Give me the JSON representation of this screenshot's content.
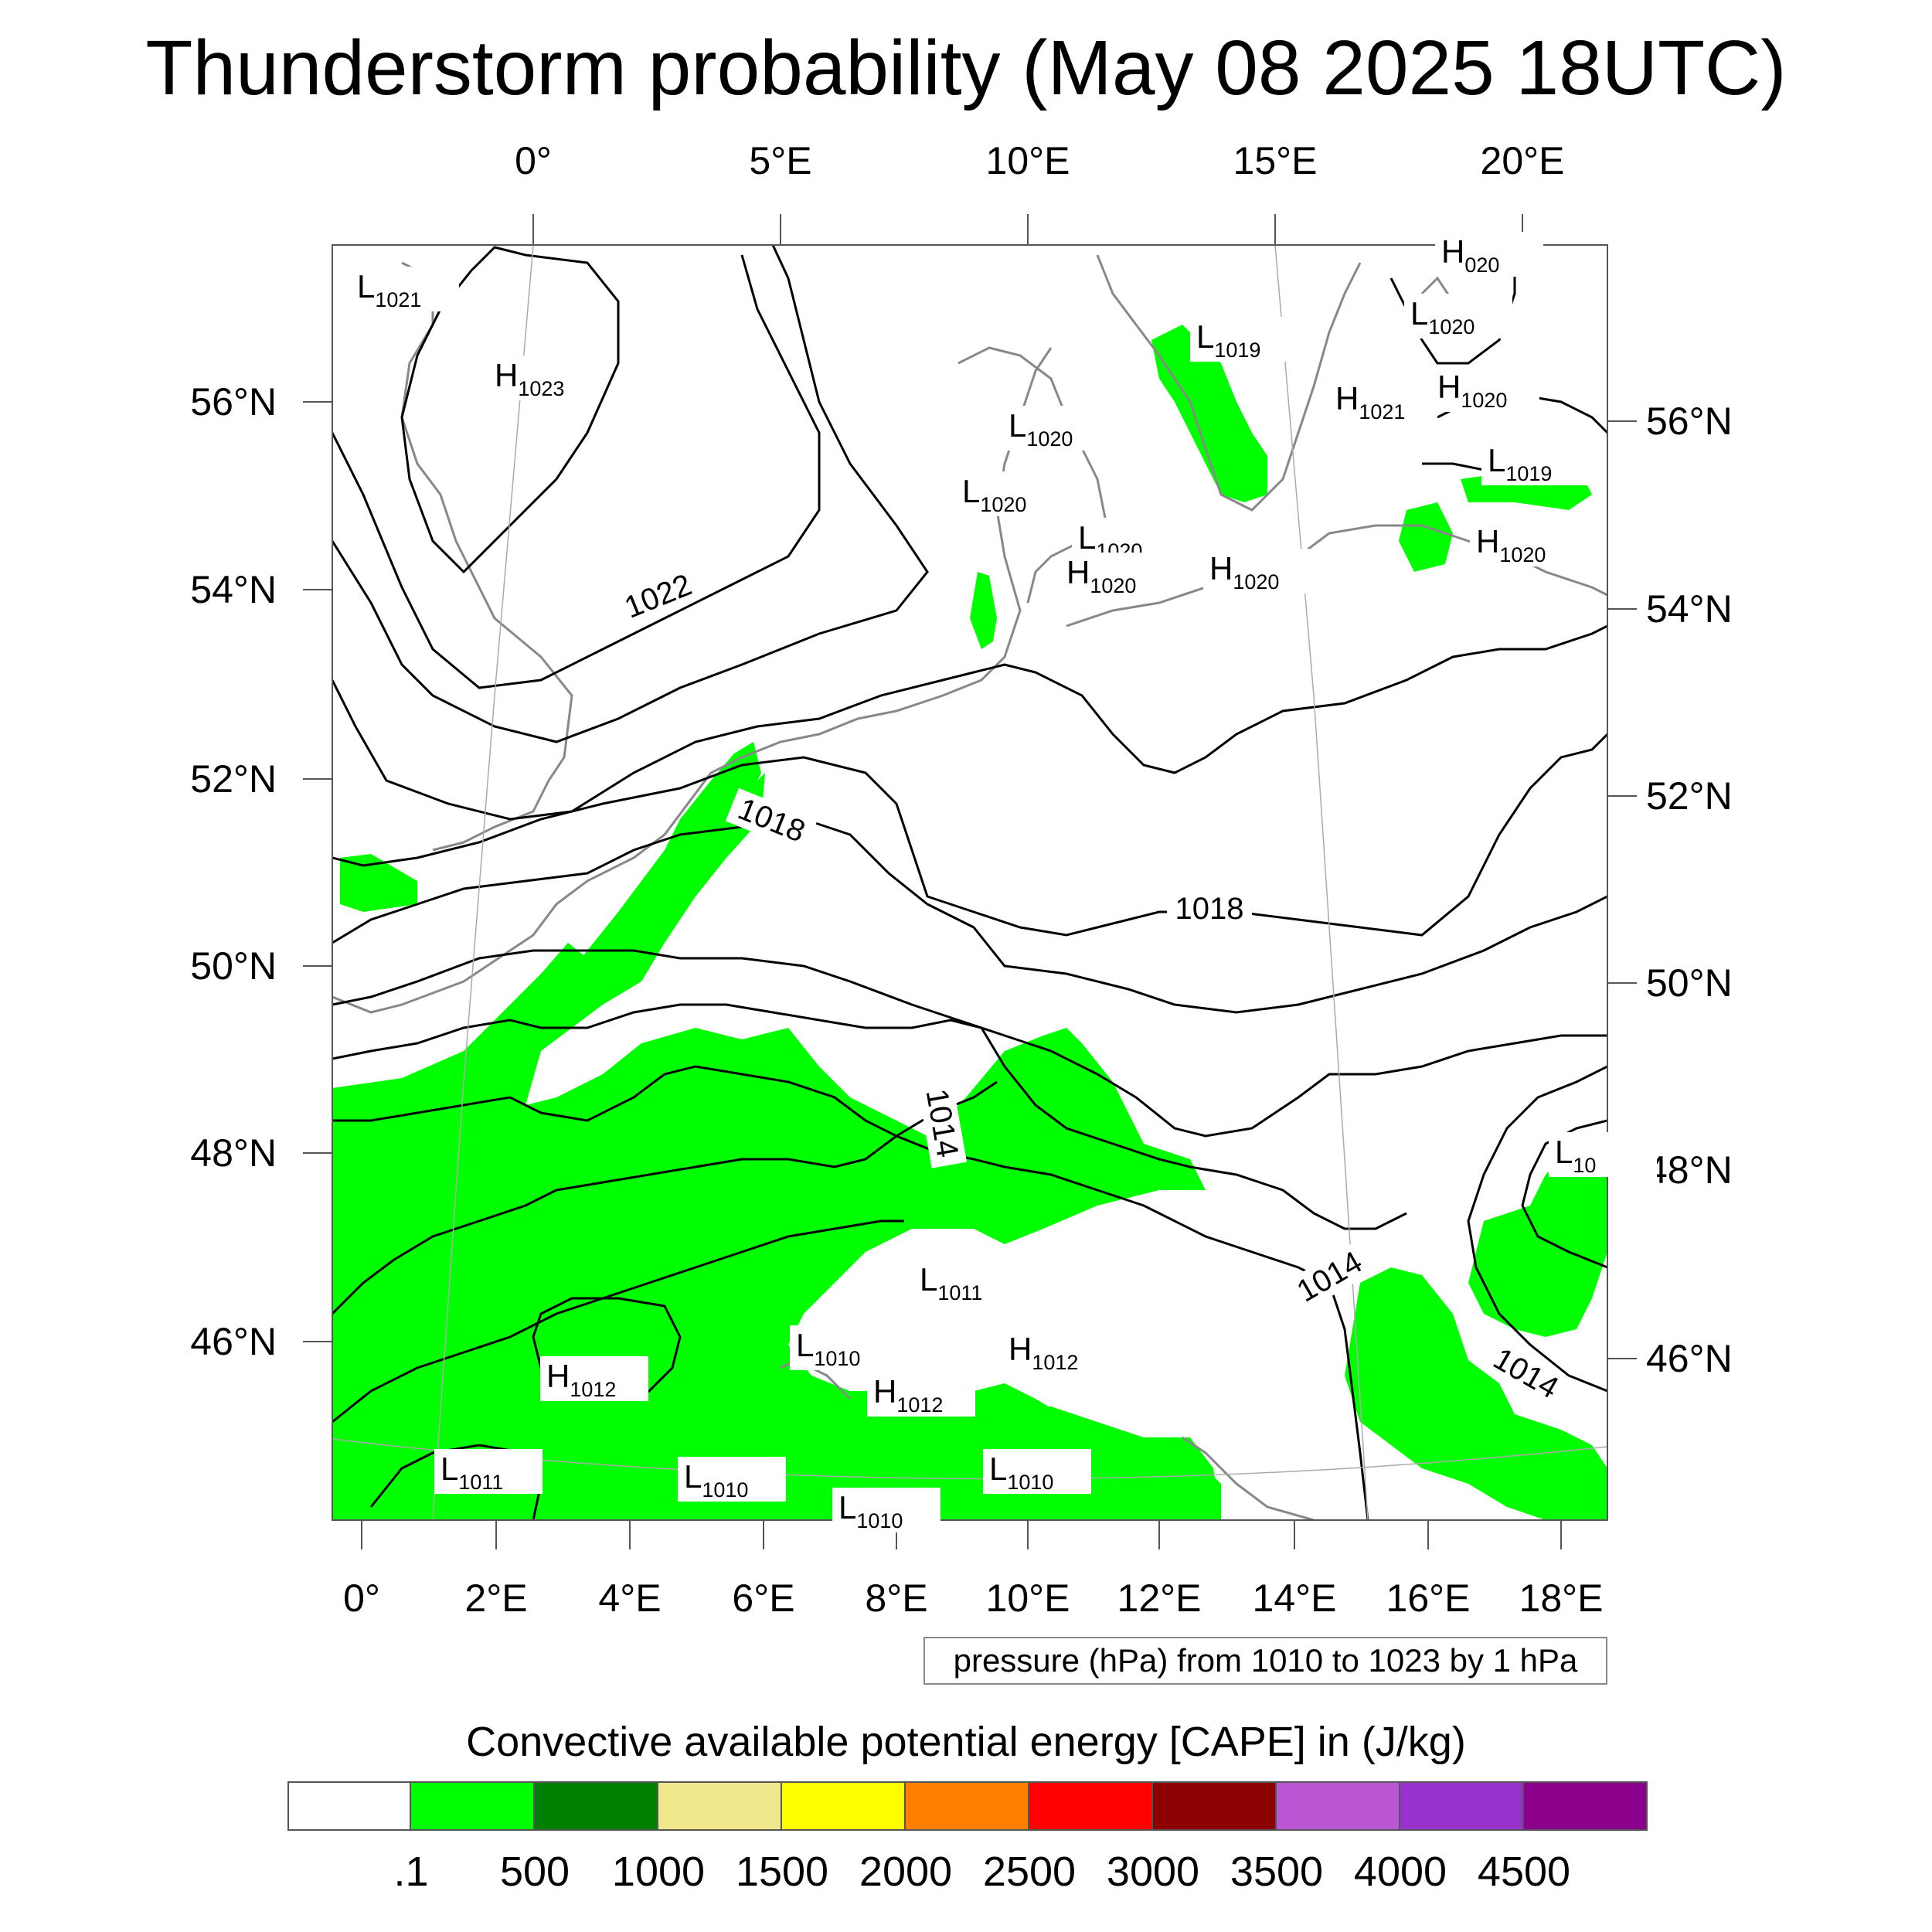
{
  "title": "Thunderstorm probability (May 08 2025 18UTC)",
  "top_lon_labels": [
    "0°",
    "5°E",
    "10°E",
    "15°E",
    "20°E"
  ],
  "bottom_lon_labels": [
    "0°",
    "2°E",
    "4°E",
    "6°E",
    "8°E",
    "10°E",
    "12°E",
    "14°E",
    "16°E",
    "18°E"
  ],
  "left_lat_labels": [
    "56°N",
    "54°N",
    "52°N",
    "50°N",
    "48°N",
    "46°N"
  ],
  "right_lat_labels": [
    "56°N",
    "54°N",
    "52°N",
    "50°N",
    "48°N",
    "46°N"
  ],
  "contour_info": "pressure (hPa) from 1010 to 1023 by 1 hPa",
  "contour_labels": [
    "1022",
    "1018",
    "1018",
    "1014",
    "1014",
    "1014"
  ],
  "pressure_centers": [
    {
      "type": "L",
      "value": "1021"
    },
    {
      "type": "H",
      "value": "1023"
    },
    {
      "type": "L",
      "value": "1020"
    },
    {
      "type": "L",
      "value": "1020"
    },
    {
      "type": "L",
      "value": "1020"
    },
    {
      "type": "H",
      "value": "1020"
    },
    {
      "type": "H",
      "value": "1020"
    },
    {
      "type": "L",
      "value": "1019"
    },
    {
      "type": "H",
      "value": "1021"
    },
    {
      "type": "H",
      "value": "1020"
    },
    {
      "type": "L",
      "value": "1020"
    },
    {
      "type": "H",
      "value": "020"
    },
    {
      "type": "L",
      "value": "1019"
    },
    {
      "type": "H",
      "value": "1020"
    },
    {
      "type": "L",
      "value": "10"
    },
    {
      "type": "L",
      "value": "1011"
    },
    {
      "type": "L",
      "value": "1010"
    },
    {
      "type": "H",
      "value": "1012"
    },
    {
      "type": "H",
      "value": "1012"
    },
    {
      "type": "H",
      "value": "1012"
    },
    {
      "type": "L",
      "value": "1011"
    },
    {
      "type": "L",
      "value": "1010"
    },
    {
      "type": "L",
      "value": "1010"
    },
    {
      "type": "L",
      "value": "1010"
    }
  ],
  "legend": {
    "title": "Convective available potential energy [CAPE] in (J/kg)",
    "colors": [
      "#ffffff",
      "#00ff00",
      "#007f00",
      "#f0e68c",
      "#ffff00",
      "#ff8000",
      "#ff0000",
      "#8b0000",
      "#ba55d3",
      "#9932cc",
      "#8b008b"
    ],
    "labels": [
      ".1",
      "500",
      "1000",
      "1500",
      "2000",
      "2500",
      "3000",
      "3500",
      "4000",
      "4500"
    ]
  }
}
